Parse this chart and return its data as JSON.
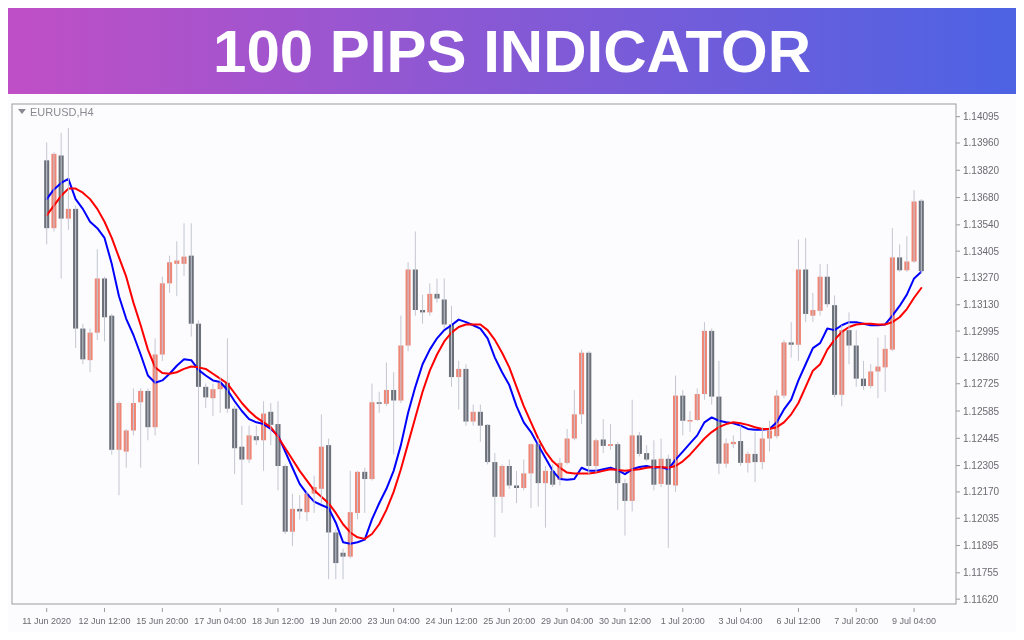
{
  "chart_data": {
    "type": "candlestick",
    "title": "100 PIPS INDICATOR",
    "subtitle": "EURUSD,H4",
    "categories": [
      "11 Jun 2020",
      null,
      null,
      null,
      null,
      null,
      null,
      null,
      "12 Jun 12:00",
      null,
      null,
      null,
      null,
      null,
      null,
      null,
      "15 Jun 20:00",
      null,
      null,
      null,
      null,
      null,
      null,
      null,
      "17 Jun 04:00",
      null,
      null,
      null,
      null,
      null,
      null,
      null,
      "18 Jun 12:00",
      null,
      null,
      null,
      null,
      null,
      null,
      null,
      "19 Jun 20:00",
      null,
      null,
      null,
      null,
      null,
      null,
      null,
      "23 Jun 04:00",
      null,
      null,
      null,
      null,
      null,
      null,
      null,
      "24 Jun 12:00",
      null,
      null,
      null,
      null,
      null,
      null,
      null,
      "25 Jun 20:00",
      null,
      null,
      null,
      null,
      null,
      null,
      null,
      "29 Jun 04:00",
      null,
      null,
      null,
      null,
      null,
      null,
      null,
      "30 Jun 12:00",
      null,
      null,
      null,
      null,
      null,
      null,
      null,
      "1 Jul 20:00",
      null,
      null,
      null,
      null,
      null,
      null,
      null,
      "3 Jul 04:00",
      null,
      null,
      null,
      null,
      null,
      null,
      null,
      "6 Jul 12:00",
      null,
      null,
      null,
      null,
      null,
      null,
      null,
      "7 Jul 20:00",
      null,
      null,
      null,
      null,
      null,
      null,
      null,
      "9 Jul 04:00",
      null
    ],
    "ohlc": [
      [
        1.13871,
        1.13963,
        1.1344,
        1.13523
      ],
      [
        1.13523,
        1.13913,
        1.13506,
        1.13904
      ],
      [
        1.13896,
        1.14012,
        1.13265,
        1.13572
      ],
      [
        1.13572,
        1.14037,
        1.13514,
        1.13622
      ],
      [
        1.13622,
        1.13639,
        1.12908,
        1.13008
      ],
      [
        1.13008,
        1.13033,
        1.12825,
        1.1285
      ],
      [
        1.12846,
        1.13008,
        1.12784,
        1.12987
      ],
      [
        1.12987,
        1.13415,
        1.1295,
        1.13265
      ],
      [
        1.13265,
        1.13274,
        1.12942,
        1.13066
      ],
      [
        1.13074,
        1.13083,
        1.12361,
        1.12386
      ],
      [
        1.12386,
        1.12635,
        1.12153,
        1.12626
      ],
      [
        1.12377,
        1.12493,
        1.12294,
        1.12485
      ],
      [
        1.12485,
        1.12701,
        1.1246,
        1.12626
      ],
      [
        1.1263,
        1.12701,
        1.12294,
        1.12688
      ],
      [
        1.12688,
        1.12701,
        1.12435,
        1.12502
      ],
      [
        1.12502,
        1.12958,
        1.1246,
        1.12875
      ],
      [
        1.12875,
        1.13274,
        1.12842,
        1.1324
      ],
      [
        1.1324,
        1.13382,
        1.13191,
        1.13348
      ],
      [
        1.1334,
        1.13456,
        1.13174,
        1.13357
      ],
      [
        1.1334,
        1.13548,
        1.13278,
        1.13377
      ],
      [
        1.13382,
        1.13548,
        1.12967,
        1.13033
      ],
      [
        1.13033,
        1.1305,
        1.12311,
        1.12709
      ],
      [
        1.12709,
        1.12726,
        1.12601,
        1.12655
      ],
      [
        1.12651,
        1.12726,
        1.1256,
        1.12697
      ],
      [
        1.12697,
        1.12759,
        1.12576,
        1.1273
      ],
      [
        1.1273,
        1.12958,
        1.12576,
        1.12597
      ],
      [
        1.12597,
        1.1261,
        1.12261,
        1.12394
      ],
      [
        1.12402,
        1.1251,
        1.12103,
        1.12336
      ],
      [
        1.12336,
        1.1251,
        1.12319,
        1.1246
      ],
      [
        1.12456,
        1.1251,
        1.1241,
        1.12435
      ],
      [
        1.12435,
        1.12635,
        1.12278,
        1.12572
      ],
      [
        1.12581,
        1.12626,
        1.1241,
        1.12514
      ],
      [
        1.12518,
        1.12635,
        1.12178,
        1.12303
      ],
      [
        1.12303,
        1.12311,
        1.11954,
        1.11966
      ],
      [
        1.11966,
        1.12161,
        1.11892,
        1.12083
      ],
      [
        1.12083,
        1.12153,
        1.12029,
        1.1207
      ],
      [
        1.12066,
        1.1217,
        1.1202,
        1.12161
      ],
      [
        1.12161,
        1.12253,
        1.12062,
        1.12195
      ],
      [
        1.12186,
        1.12568,
        1.12112,
        1.12402
      ],
      [
        1.1241,
        1.12444,
        1.11722,
        1.11962
      ],
      [
        1.11962,
        1.11979,
        1.11722,
        1.11805
      ],
      [
        1.11858,
        1.11879,
        1.11722,
        1.11838
      ],
      [
        1.11838,
        1.12278,
        1.11829,
        1.12066
      ],
      [
        1.12062,
        1.12278,
        1.12029,
        1.12273
      ],
      [
        1.12273,
        1.12294,
        1.12062,
        1.12236
      ],
      [
        1.12236,
        1.12726,
        1.12228,
        1.1263
      ],
      [
        1.1263,
        1.12684,
        1.12576,
        1.12622
      ],
      [
        1.12622,
        1.12834,
        1.1261,
        1.12693
      ],
      [
        1.12693,
        1.12784,
        1.12361,
        1.12639
      ],
      [
        1.12639,
        1.13074,
        1.12626,
        1.12921
      ],
      [
        1.12921,
        1.13348,
        1.12892,
        1.13311
      ],
      [
        1.13311,
        1.13506,
        1.13074,
        1.13103
      ],
      [
        1.13103,
        1.13182,
        1.13033,
        1.13091
      ],
      [
        1.13091,
        1.1324,
        1.13074,
        1.13186
      ],
      [
        1.13186,
        1.13265,
        1.13141,
        1.13162
      ],
      [
        1.13157,
        1.13265,
        1.13008,
        1.13029
      ],
      [
        1.13029,
        1.13124,
        1.12709,
        1.12759
      ],
      [
        1.12759,
        1.12842,
        1.12593,
        1.12801
      ],
      [
        1.12801,
        1.12825,
        1.1251,
        1.12531
      ],
      [
        1.12531,
        1.12618,
        1.1251,
        1.12581
      ],
      [
        1.12581,
        1.12618,
        1.12427,
        1.1251
      ],
      [
        1.12514,
        1.12518,
        1.12311,
        1.12323
      ],
      [
        1.12323,
        1.12369,
        1.11937,
        1.12145
      ],
      [
        1.12145,
        1.12311,
        1.12062,
        1.12303
      ],
      [
        1.12303,
        1.12336,
        1.12186,
        1.12203
      ],
      [
        1.12203,
        1.12278,
        1.12112,
        1.1219
      ],
      [
        1.1219,
        1.12336,
        1.12178,
        1.12265
      ],
      [
        1.12265,
        1.12419,
        1.12087,
        1.12415
      ],
      [
        1.12415,
        1.12444,
        1.12095,
        1.12215
      ],
      [
        1.12215,
        1.12303,
        1.11987,
        1.12278
      ],
      [
        1.12278,
        1.12311,
        1.12195,
        1.12207
      ],
      [
        1.12232,
        1.12344,
        1.12203,
        1.12319
      ],
      [
        1.12319,
        1.12493,
        1.12311,
        1.12444
      ],
      [
        1.12444,
        1.12693,
        1.12435,
        1.12568
      ],
      [
        1.12568,
        1.129,
        1.12518,
        1.12884
      ],
      [
        1.12884,
        1.12892,
        1.12261,
        1.12303
      ],
      [
        1.12303,
        1.12444,
        1.12269,
        1.12435
      ],
      [
        1.12439,
        1.12543,
        1.12369,
        1.12406
      ],
      [
        1.12406,
        1.12518,
        1.12386,
        1.12415
      ],
      [
        1.12415,
        1.12427,
        1.12078,
        1.12215
      ],
      [
        1.12215,
        1.12236,
        1.11946,
        1.12124
      ],
      [
        1.12124,
        1.12643,
        1.1207,
        1.1246
      ],
      [
        1.1246,
        1.12477,
        1.12352,
        1.12365
      ],
      [
        1.12369,
        1.1241,
        1.12327,
        1.12336
      ],
      [
        1.12336,
        1.12435,
        1.12178,
        1.12207
      ],
      [
        1.12211,
        1.12444,
        1.12195,
        1.1234
      ],
      [
        1.1234,
        1.12361,
        1.11883,
        1.12207
      ],
      [
        1.12203,
        1.12767,
        1.1217,
        1.12664
      ],
      [
        1.12664,
        1.12693,
        1.1246,
        1.12535
      ],
      [
        1.12531,
        1.12585,
        1.12477,
        1.12539
      ],
      [
        1.12539,
        1.12701,
        1.12535,
        1.12672
      ],
      [
        1.12672,
        1.13041,
        1.12643,
        1.12996
      ],
      [
        1.12996,
        1.13008,
        1.12618,
        1.12659
      ],
      [
        1.12659,
        1.12842,
        1.12261,
        1.12315
      ],
      [
        1.12315,
        1.12444,
        1.12294,
        1.12419
      ],
      [
        1.12415,
        1.1246,
        1.12394,
        1.12427
      ],
      [
        1.12431,
        1.1251,
        1.12303,
        1.12319
      ],
      [
        1.12319,
        1.12377,
        1.12269,
        1.12365
      ],
      [
        1.12365,
        1.12477,
        1.1222,
        1.12323
      ],
      [
        1.12323,
        1.12502,
        1.12286,
        1.12444
      ],
      [
        1.12444,
        1.12535,
        1.12377,
        1.12485
      ],
      [
        1.12456,
        1.12693,
        1.12444,
        1.12664
      ],
      [
        1.12664,
        1.1295,
        1.12651,
        1.12937
      ],
      [
        1.12937,
        1.13041,
        1.12859,
        1.12925
      ],
      [
        1.12925,
        1.13465,
        1.12842,
        1.13311
      ],
      [
        1.13311,
        1.13473,
        1.13041,
        1.13083
      ],
      [
        1.13074,
        1.13191,
        1.13041,
        1.13103
      ],
      [
        1.13099,
        1.1334,
        1.13074,
        1.13274
      ],
      [
        1.13274,
        1.1334,
        1.13116,
        1.13133
      ],
      [
        1.13128,
        1.13178,
        1.12655,
        1.12668
      ],
      [
        1.12668,
        1.13025,
        1.1261,
        1.13
      ],
      [
        1.13,
        1.13091,
        1.12825,
        1.12921
      ],
      [
        1.12921,
        1.13,
        1.12709,
        1.12751
      ],
      [
        1.12751,
        1.12842,
        1.12693,
        1.12713
      ],
      [
        1.12713,
        1.12825,
        1.12701,
        1.12788
      ],
      [
        1.12788,
        1.12962,
        1.12651,
        1.12813
      ],
      [
        1.12809,
        1.12975,
        1.12684,
        1.12904
      ],
      [
        1.129,
        1.13523,
        1.12892,
        1.13373
      ],
      [
        1.13373,
        1.1344,
        1.13299,
        1.13307
      ],
      [
        1.13307,
        1.13481,
        1.13299,
        1.13352
      ],
      [
        1.13352,
        1.13718,
        1.13344,
        1.1366
      ],
      [
        1.13664,
        1.13672,
        1.1329,
        1.13303
      ]
    ],
    "series": [
      {
        "type": "line",
        "color": "#0000ff",
        "values": [
          1.13672,
          1.13722,
          1.13755,
          1.13776,
          1.13672,
          1.13622,
          1.13556,
          1.13523,
          1.13473,
          1.1334,
          1.13174,
          1.13058,
          1.12975,
          1.12875,
          1.12767,
          1.1273,
          1.12742,
          1.12776,
          1.12817,
          1.1285,
          1.12846,
          1.12796,
          1.12767,
          1.12742,
          1.12734,
          1.12693,
          1.12635,
          1.12585,
          1.12543,
          1.12527,
          1.12518,
          1.12493,
          1.1246,
          1.12377,
          1.12294,
          1.12211,
          1.12161,
          1.1212,
          1.12103,
          1.12087,
          1.12012,
          1.11912,
          1.11904,
          1.11912,
          1.11925,
          1.12029,
          1.12112,
          1.12186,
          1.12278,
          1.1241,
          1.12576,
          1.12709,
          1.12825,
          1.129,
          1.12958,
          1.13,
          1.13025,
          1.13054,
          1.13041,
          1.13025,
          1.13008,
          1.12958,
          1.12859,
          1.12784,
          1.12718,
          1.1261,
          1.12527,
          1.12477,
          1.1241,
          1.12344,
          1.12278,
          1.12236,
          1.12232,
          1.12236,
          1.12294,
          1.12278,
          1.12278,
          1.12286,
          1.12294,
          1.12282,
          1.12261,
          1.12286,
          1.12298,
          1.12303,
          1.12294,
          1.12298,
          1.12286,
          1.12336,
          1.12377,
          1.12419,
          1.1246,
          1.12527,
          1.12552,
          1.12535,
          1.12527,
          1.12522,
          1.1251,
          1.12493,
          1.12489,
          1.12489,
          1.12493,
          1.12527,
          1.12593,
          1.12643,
          1.12742,
          1.12825,
          1.12908,
          1.12933,
          1.13008,
          1.13,
          1.13025,
          1.13041,
          1.13041,
          1.13033,
          1.13025,
          1.13025,
          1.13029,
          1.13074,
          1.13124,
          1.13182,
          1.13265,
          1.13299
        ]
      },
      {
        "type": "line",
        "color": "#ff0000",
        "values": [
          1.13589,
          1.13639,
          1.13689,
          1.13726,
          1.13726,
          1.13705,
          1.13672,
          1.13622,
          1.13556,
          1.13473,
          1.13373,
          1.13274,
          1.13141,
          1.13025,
          1.129,
          1.12809,
          1.1278,
          1.12776,
          1.12784,
          1.12801,
          1.12813,
          1.12809,
          1.12801,
          1.12776,
          1.12751,
          1.12726,
          1.12676,
          1.12626,
          1.12585,
          1.12552,
          1.12527,
          1.12502,
          1.12452,
          1.12394,
          1.12336,
          1.12278,
          1.12228,
          1.12178,
          1.12145,
          1.12112,
          1.12062,
          1.12004,
          1.11962,
          1.11937,
          1.11929,
          1.11954,
          1.12004,
          1.12078,
          1.1217,
          1.12286,
          1.12419,
          1.12552,
          1.12684,
          1.12792,
          1.12875,
          1.12942,
          1.12987,
          1.13016,
          1.13029,
          1.13029,
          1.13029,
          1.13,
          1.1295,
          1.12884,
          1.12809,
          1.12709,
          1.1261,
          1.12527,
          1.12444,
          1.12377,
          1.12327,
          1.12294,
          1.12269,
          1.12265,
          1.12265,
          1.12265,
          1.12269,
          1.12278,
          1.12286,
          1.12282,
          1.12278,
          1.12282,
          1.12286,
          1.12294,
          1.12298,
          1.12298,
          1.12294,
          1.12303,
          1.12327,
          1.12361,
          1.12402,
          1.12444,
          1.12477,
          1.12502,
          1.12518,
          1.12527,
          1.12522,
          1.12514,
          1.12502,
          1.12493,
          1.12493,
          1.12502,
          1.12527,
          1.12568,
          1.12626,
          1.12709,
          1.12792,
          1.12825,
          1.129,
          1.1295,
          1.12991,
          1.13016,
          1.13029,
          1.13033,
          1.13033,
          1.13029,
          1.13029,
          1.13041,
          1.13066,
          1.13108,
          1.13166,
          1.13216
        ]
      }
    ],
    "ylim": [
      1.11595,
      1.1416
    ],
    "yticks": [
      {
        "value": 1.1162,
        "label": "1.11620"
      },
      1.11755,
      1.11895,
      1.12035,
      {
        "value": 1.1217,
        "label": "1.12170"
      },
      1.12305,
      1.12445,
      1.12585,
      1.12725,
      {
        "value": 1.1286,
        "label": "1.12860"
      },
      1.12995,
      {
        "value": 1.1313,
        "label": "1.13130"
      },
      {
        "value": 1.1327,
        "label": "1.13270"
      },
      1.13405,
      {
        "value": 1.1354,
        "label": "1.13540"
      },
      {
        "value": 1.1368,
        "label": "1.13680"
      },
      {
        "value": 1.1382,
        "label": "1.13820"
      },
      {
        "value": 1.1396,
        "label": "1.13960"
      },
      1.14095
    ],
    "marker": "none",
    "line_style": "solid",
    "grid": false
  }
}
